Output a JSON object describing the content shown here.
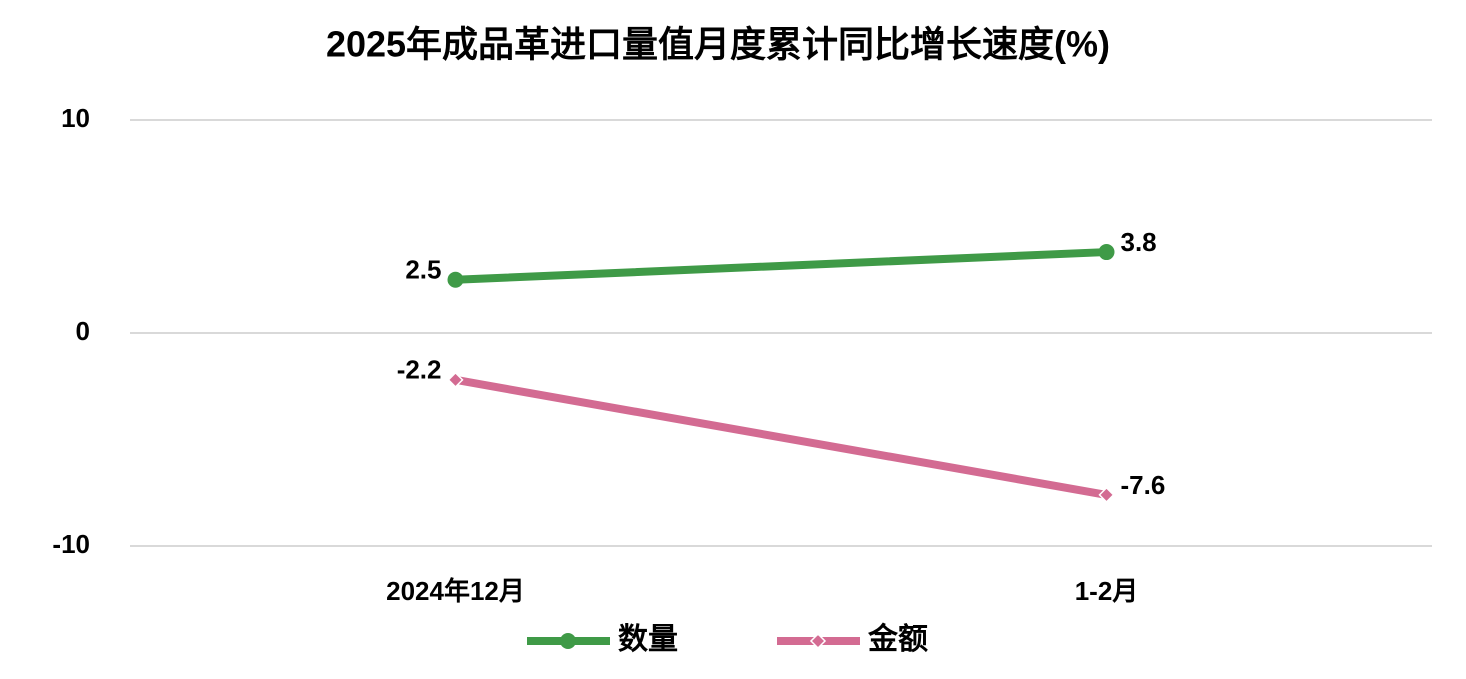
{
  "chart_data": {
    "type": "line",
    "title": "2025年成品革进口量值月度累计同比增长速度(%)",
    "categories": [
      "2024年12月",
      "1-2月"
    ],
    "series": [
      {
        "name": "数量",
        "color": "#3f9a47",
        "marker": "circle",
        "values": [
          2.5,
          3.8
        ]
      },
      {
        "name": "金额",
        "color": "#d36b92",
        "marker": "diamond",
        "values": [
          -2.2,
          -7.6
        ]
      }
    ],
    "ylim": [
      -10,
      10
    ],
    "yticks": [
      -10,
      0,
      10
    ],
    "grid": true,
    "legend": "bottom",
    "data_labels": true
  }
}
